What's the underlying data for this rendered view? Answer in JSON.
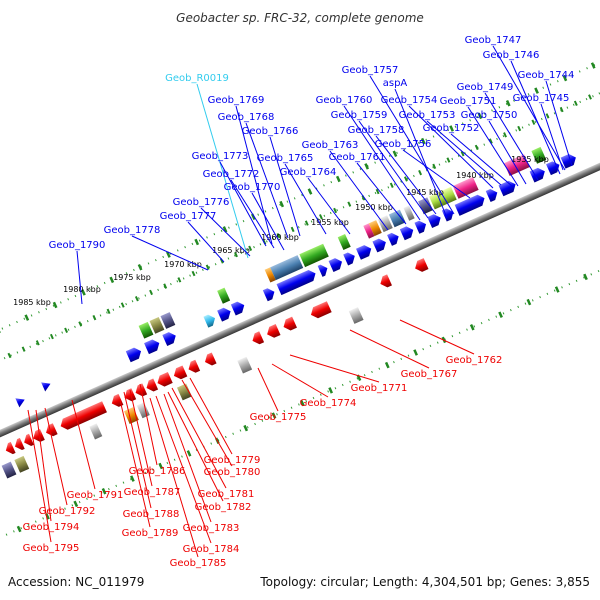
{
  "title": "Geobacter sp. FRC-32, complete genome",
  "footer": {
    "accession": "Accession: NC_011979",
    "summary": "Topology: circular; Length: 4,304,501 bp; Genes: 3,855"
  },
  "colors": {
    "forward_gene": "#0000ee",
    "reverse_gene": "#ee0000",
    "rna_gene": "#33ccee",
    "track": "#808080",
    "tick": "#228822"
  },
  "ticks": [
    "1985 kbp",
    "1980 kbp",
    "1975 kbp",
    "1970 kbp",
    "1965 kbp",
    "1960 kbp",
    "1955 kbp",
    "1950 kbp",
    "1945 kbp",
    "1940 kbp",
    "1935 kbp"
  ],
  "forward_labels": [
    "Geob_1747",
    "Geob_1746",
    "Geob_1744",
    "Geob_1757",
    "aspA",
    "Geob_1749",
    "Geob_R0019",
    "Geob_1769",
    "Geob_1760",
    "Geob_1754",
    "Geob_1751",
    "Geob_1745",
    "Geob_1768",
    "Geob_1759",
    "Geob_1753",
    "Geob_1750",
    "Geob_1766",
    "Geob_1758",
    "Geob_1752",
    "Geob_1763",
    "Geob_1756",
    "Geob_1773",
    "Geob_1765",
    "Geob_1761",
    "Geob_1772",
    "Geob_1764",
    "Geob_1770",
    "Geob_1776",
    "Geob_1777",
    "Geob_1778",
    "Geob_1790"
  ],
  "reverse_labels": [
    "Geob_1762",
    "Geob_1767",
    "Geob_1771",
    "Geob_1774",
    "Geob_1775",
    "Geob_1779",
    "Geob_1780",
    "Geob_1786",
    "Geob_1781",
    "Geob_1787",
    "Geob_1791",
    "Geob_1782",
    "Geob_1788",
    "Geob_1792",
    "Geob_1783",
    "Geob_1794",
    "Geob_1789",
    "Geob_1784",
    "Geob_1795",
    "Geob_1785"
  ]
}
